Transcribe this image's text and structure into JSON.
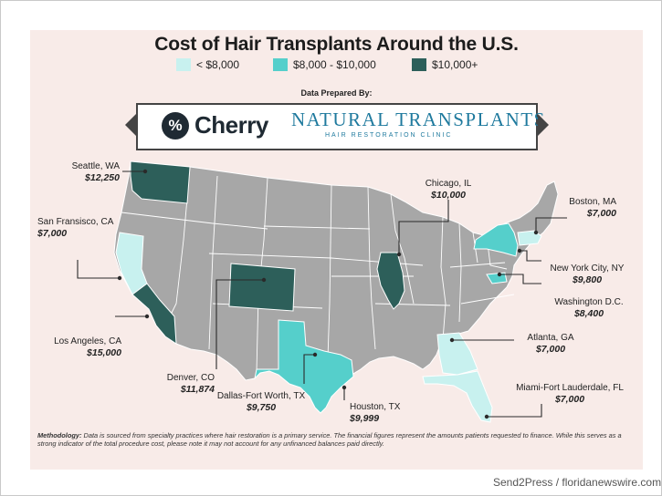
{
  "title": "Cost of Hair Transplants Around the U.S.",
  "legend": [
    {
      "label": "< $8,000",
      "color": "#c8f1ef"
    },
    {
      "label": "$8,000 - $10,000",
      "color": "#55cfcb"
    },
    {
      "label": "$10,000+",
      "color": "#2d5f5a"
    }
  ],
  "prepared_by": "Data Prepared By:",
  "logos": {
    "cherry_mark": "%",
    "cherry": "Cherry",
    "natural_transplants": "NATURAL TRANSPLANTS",
    "natural_transplants_sub": "HAIR RESTORATION CLINIC"
  },
  "map_colors": {
    "land": "#a7a7a7",
    "state_border": "#ffffff",
    "leader_line": "#2a2a2a"
  },
  "cities": [
    {
      "name": "Seattle, WA",
      "cost": "$12,250",
      "tier": "$10,000+"
    },
    {
      "name": "San Fransisco, CA",
      "cost": "$7,000",
      "tier": "< $8,000"
    },
    {
      "name": "Los Angeles, CA",
      "cost": "$15,000",
      "tier": "$10,000+"
    },
    {
      "name": "Denver, CO",
      "cost": "$11,874",
      "tier": "$10,000+"
    },
    {
      "name": "Dallas-Fort Worth, TX",
      "cost": "$9,750",
      "tier": "$8,000 - $10,000"
    },
    {
      "name": "Houston, TX",
      "cost": "$9,999",
      "tier": "$8,000 - $10,000"
    },
    {
      "name": "Chicago, IL",
      "cost": "$10,000",
      "tier": "$10,000+"
    },
    {
      "name": "Boston, MA",
      "cost": "$7,000",
      "tier": "< $8,000"
    },
    {
      "name": "New York City, NY",
      "cost": "$9,800",
      "tier": "$8,000 - $10,000"
    },
    {
      "name": "Washington D.C.",
      "cost": "$8,400",
      "tier": "$8,000 - $10,000"
    },
    {
      "name": "Atlanta, GA",
      "cost": "$7,000",
      "tier": "< $8,000"
    },
    {
      "name": "Miami-Fort Lauderdale, FL",
      "cost": "$7,000",
      "tier": "< $8,000"
    }
  ],
  "methodology": {
    "label": "Methodology:",
    "text": "Data is sourced from specialty practices where hair restoration is a primary service. The financial figures represent the amounts patients requested to finance. While this serves as a strong indicator of the total procedure cost, please note it may not account for any unfinanced balances paid directly."
  },
  "credit": "Send2Press / floridanewswire.com"
}
